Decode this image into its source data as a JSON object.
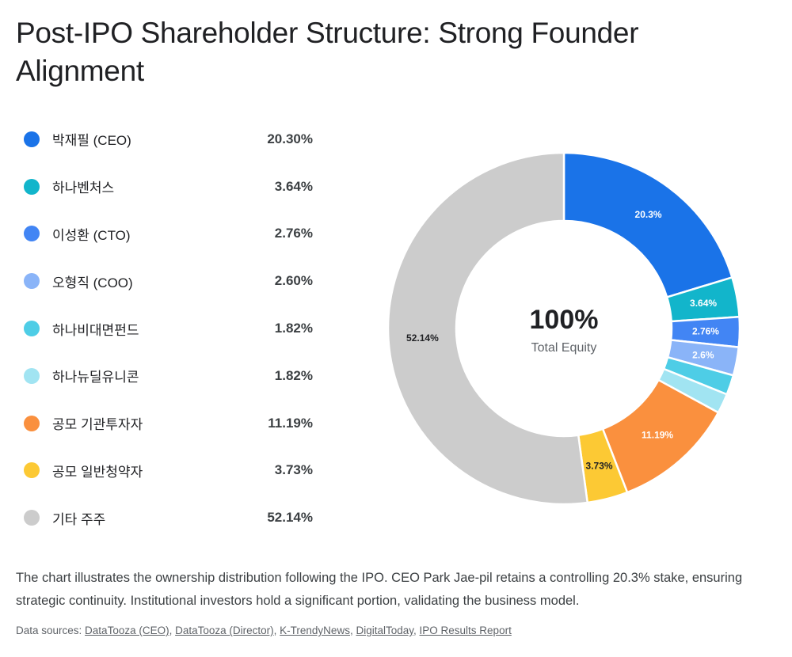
{
  "title": "Post-IPO Shareholder Structure: Strong Founder Alignment",
  "legend": [
    {
      "label": "박재필 (CEO)",
      "value_text": "20.30%"
    },
    {
      "label": "하나벤처스",
      "value_text": "3.64%"
    },
    {
      "label": "이성환 (CTO)",
      "value_text": "2.76%"
    },
    {
      "label": "오형직 (COO)",
      "value_text": "2.60%"
    },
    {
      "label": "하나비대면펀드",
      "value_text": "1.82%"
    },
    {
      "label": "하나뉴딜유니콘",
      "value_text": "1.82%"
    },
    {
      "label": "공모 기관투자자",
      "value_text": "11.19%"
    },
    {
      "label": "공모 일반청약자",
      "value_text": "3.73%"
    },
    {
      "label": "기타 주주",
      "value_text": "52.14%"
    }
  ],
  "center": {
    "value": "100%",
    "label": "Total Equity"
  },
  "caption": "The chart illustrates the ownership distribution following the IPO. CEO Park Jae-pil retains a controlling 20.3% stake, ensuring strategic continuity. Institutional investors hold a significant portion, validating the business model.",
  "sources": {
    "prefix": "Data sources: ",
    "links": [
      "DataTooza (CEO)",
      "DataTooza (Director)",
      "K-TrendyNews",
      "DigitalToday",
      "IPO Results Report"
    ]
  },
  "chart_data": {
    "type": "pie",
    "donut": true,
    "categories": [
      "박재필 (CEO)",
      "하나벤처스",
      "이성환 (CTO)",
      "오형직 (COO)",
      "하나비대면펀드",
      "하나뉴딜유니콘",
      "공모 기관투자자",
      "공모 일반청약자",
      "기타 주주"
    ],
    "values": [
      20.3,
      3.64,
      2.76,
      2.6,
      1.82,
      1.82,
      11.19,
      3.73,
      52.14
    ],
    "slice_labels": [
      "20.3%",
      "3.64%",
      "2.76%",
      "2.6%",
      "",
      "",
      "11.19%",
      "3.73%",
      "52.14%"
    ],
    "label_colors": [
      "#ffffff",
      "#ffffff",
      "#ffffff",
      "#ffffff",
      "#ffffff",
      "#ffffff",
      "#ffffff",
      "#202124",
      "#202124"
    ],
    "colors": [
      "#1a73e8",
      "#12b5cb",
      "#4285f4",
      "#8ab4f8",
      "#4ecde6",
      "#a1e4f2",
      "#fa903e",
      "#fcc934",
      "#cccccc"
    ],
    "legend_position": "left"
  }
}
